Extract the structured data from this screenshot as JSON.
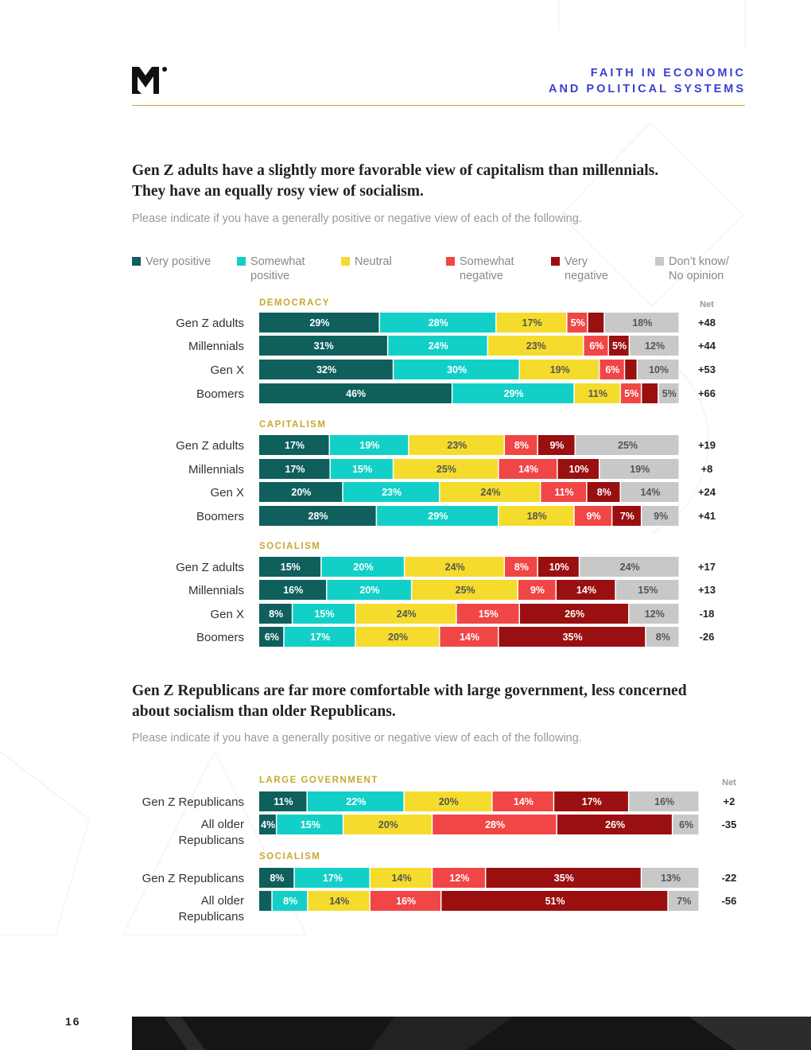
{
  "header": {
    "title_line1": "FAITH IN ECONOMIC",
    "title_line2": "AND POLITICAL SYSTEMS",
    "logo": "m-logo-icon"
  },
  "page_number": "16",
  "colors": {
    "very_positive": "#0f5f5d",
    "somewhat_positive": "#12d0c8",
    "neutral": "#f5dc2c",
    "somewhat_negative": "#f04646",
    "very_negative": "#9a0f0f",
    "dont_know": "#c8c8c8",
    "section_label": "#c8a830",
    "header": "#3b3fce"
  },
  "legend": [
    {
      "key": "very_positive",
      "line1": "Very positive",
      "line2": ""
    },
    {
      "key": "somewhat_positive",
      "line1": "Somewhat",
      "line2": "positive"
    },
    {
      "key": "neutral",
      "line1": "Neutral",
      "line2": ""
    },
    {
      "key": "somewhat_negative",
      "line1": "Somewhat",
      "line2": "negative"
    },
    {
      "key": "very_negative",
      "line1": "Very",
      "line2": "negative"
    },
    {
      "key": "dont_know",
      "line1": "Don’t know/",
      "line2": "No opinion"
    }
  ],
  "chart_data": [
    {
      "type": "bar",
      "stacked": true,
      "orientation": "horizontal",
      "title_line1": "Gen Z adults have a slightly more favorable view of capitalism than millennials.",
      "title_line2": "They have an equally rosy view of socialism.",
      "subtitle": "Please indicate if you have a generally positive or negative view of each of the following.",
      "net_label": "Net",
      "series_names": [
        "Very positive",
        "Somewhat positive",
        "Neutral",
        "Somewhat negative",
        "Very negative",
        "Don’t know/ No opinion"
      ],
      "groups": [
        {
          "label": "DEMOCRACY",
          "rows": [
            {
              "label": "Gen Z adults",
              "values": [
                29,
                28,
                17,
                5,
                4,
                18
              ],
              "net": "+48"
            },
            {
              "label": "Millennials",
              "values": [
                31,
                24,
                23,
                6,
                5,
                12
              ],
              "net": "+44"
            },
            {
              "label": "Gen X",
              "values": [
                32,
                30,
                19,
                6,
                3,
                10
              ],
              "net": "+53"
            },
            {
              "label": "Boomers",
              "values": [
                46,
                29,
                11,
                5,
                4,
                5
              ],
              "net": "+66"
            }
          ]
        },
        {
          "label": "CAPITALISM",
          "rows": [
            {
              "label": "Gen Z adults",
              "values": [
                17,
                19,
                23,
                8,
                9,
                25
              ],
              "net": "+19"
            },
            {
              "label": "Millennials",
              "values": [
                17,
                15,
                25,
                14,
                10,
                19
              ],
              "net": "+8"
            },
            {
              "label": "Gen X",
              "values": [
                20,
                23,
                24,
                11,
                8,
                14
              ],
              "net": "+24"
            },
            {
              "label": "Boomers",
              "values": [
                28,
                29,
                18,
                9,
                7,
                9
              ],
              "net": "+41"
            }
          ]
        },
        {
          "label": "SOCIALISM",
          "rows": [
            {
              "label": "Gen Z adults",
              "values": [
                15,
                20,
                24,
                8,
                10,
                24
              ],
              "net": "+17"
            },
            {
              "label": "Millennials",
              "values": [
                16,
                20,
                25,
                9,
                14,
                15
              ],
              "net": "+13"
            },
            {
              "label": "Gen X",
              "values": [
                8,
                15,
                24,
                15,
                26,
                12
              ],
              "net": "-18"
            },
            {
              "label": "Boomers",
              "values": [
                6,
                17,
                20,
                14,
                35,
                8
              ],
              "net": "-26"
            }
          ]
        }
      ]
    },
    {
      "type": "bar",
      "stacked": true,
      "orientation": "horizontal",
      "title_line1": "Gen Z  Republicans are far more comfortable with large government, less concerned",
      "title_line2": "about socialism than older Republicans.",
      "subtitle": "Please indicate if you have a generally positive or negative view of each of the following.",
      "net_label": "Net",
      "series_names": [
        "Very positive",
        "Somewhat positive",
        "Neutral",
        "Somewhat negative",
        "Very negative",
        "Don’t know/ No opinion"
      ],
      "groups": [
        {
          "label": "LARGE GOVERNMENT",
          "rows": [
            {
              "label": "Gen Z Republicans",
              "label2": "",
              "values": [
                11,
                22,
                20,
                14,
                17,
                16
              ],
              "net": "+2"
            },
            {
              "label": "All older",
              "label2": "Republicans",
              "values": [
                4,
                15,
                20,
                28,
                26,
                6
              ],
              "net": "-35"
            }
          ]
        },
        {
          "label": "SOCIALISM",
          "rows": [
            {
              "label": "Gen Z Republicans",
              "label2": "",
              "values": [
                8,
                17,
                14,
                12,
                35,
                13
              ],
              "net": "-22"
            },
            {
              "label": "All older",
              "label2": "Republicans",
              "values": [
                3,
                8,
                14,
                16,
                51,
                7
              ],
              "net": "-56"
            }
          ]
        }
      ]
    }
  ]
}
